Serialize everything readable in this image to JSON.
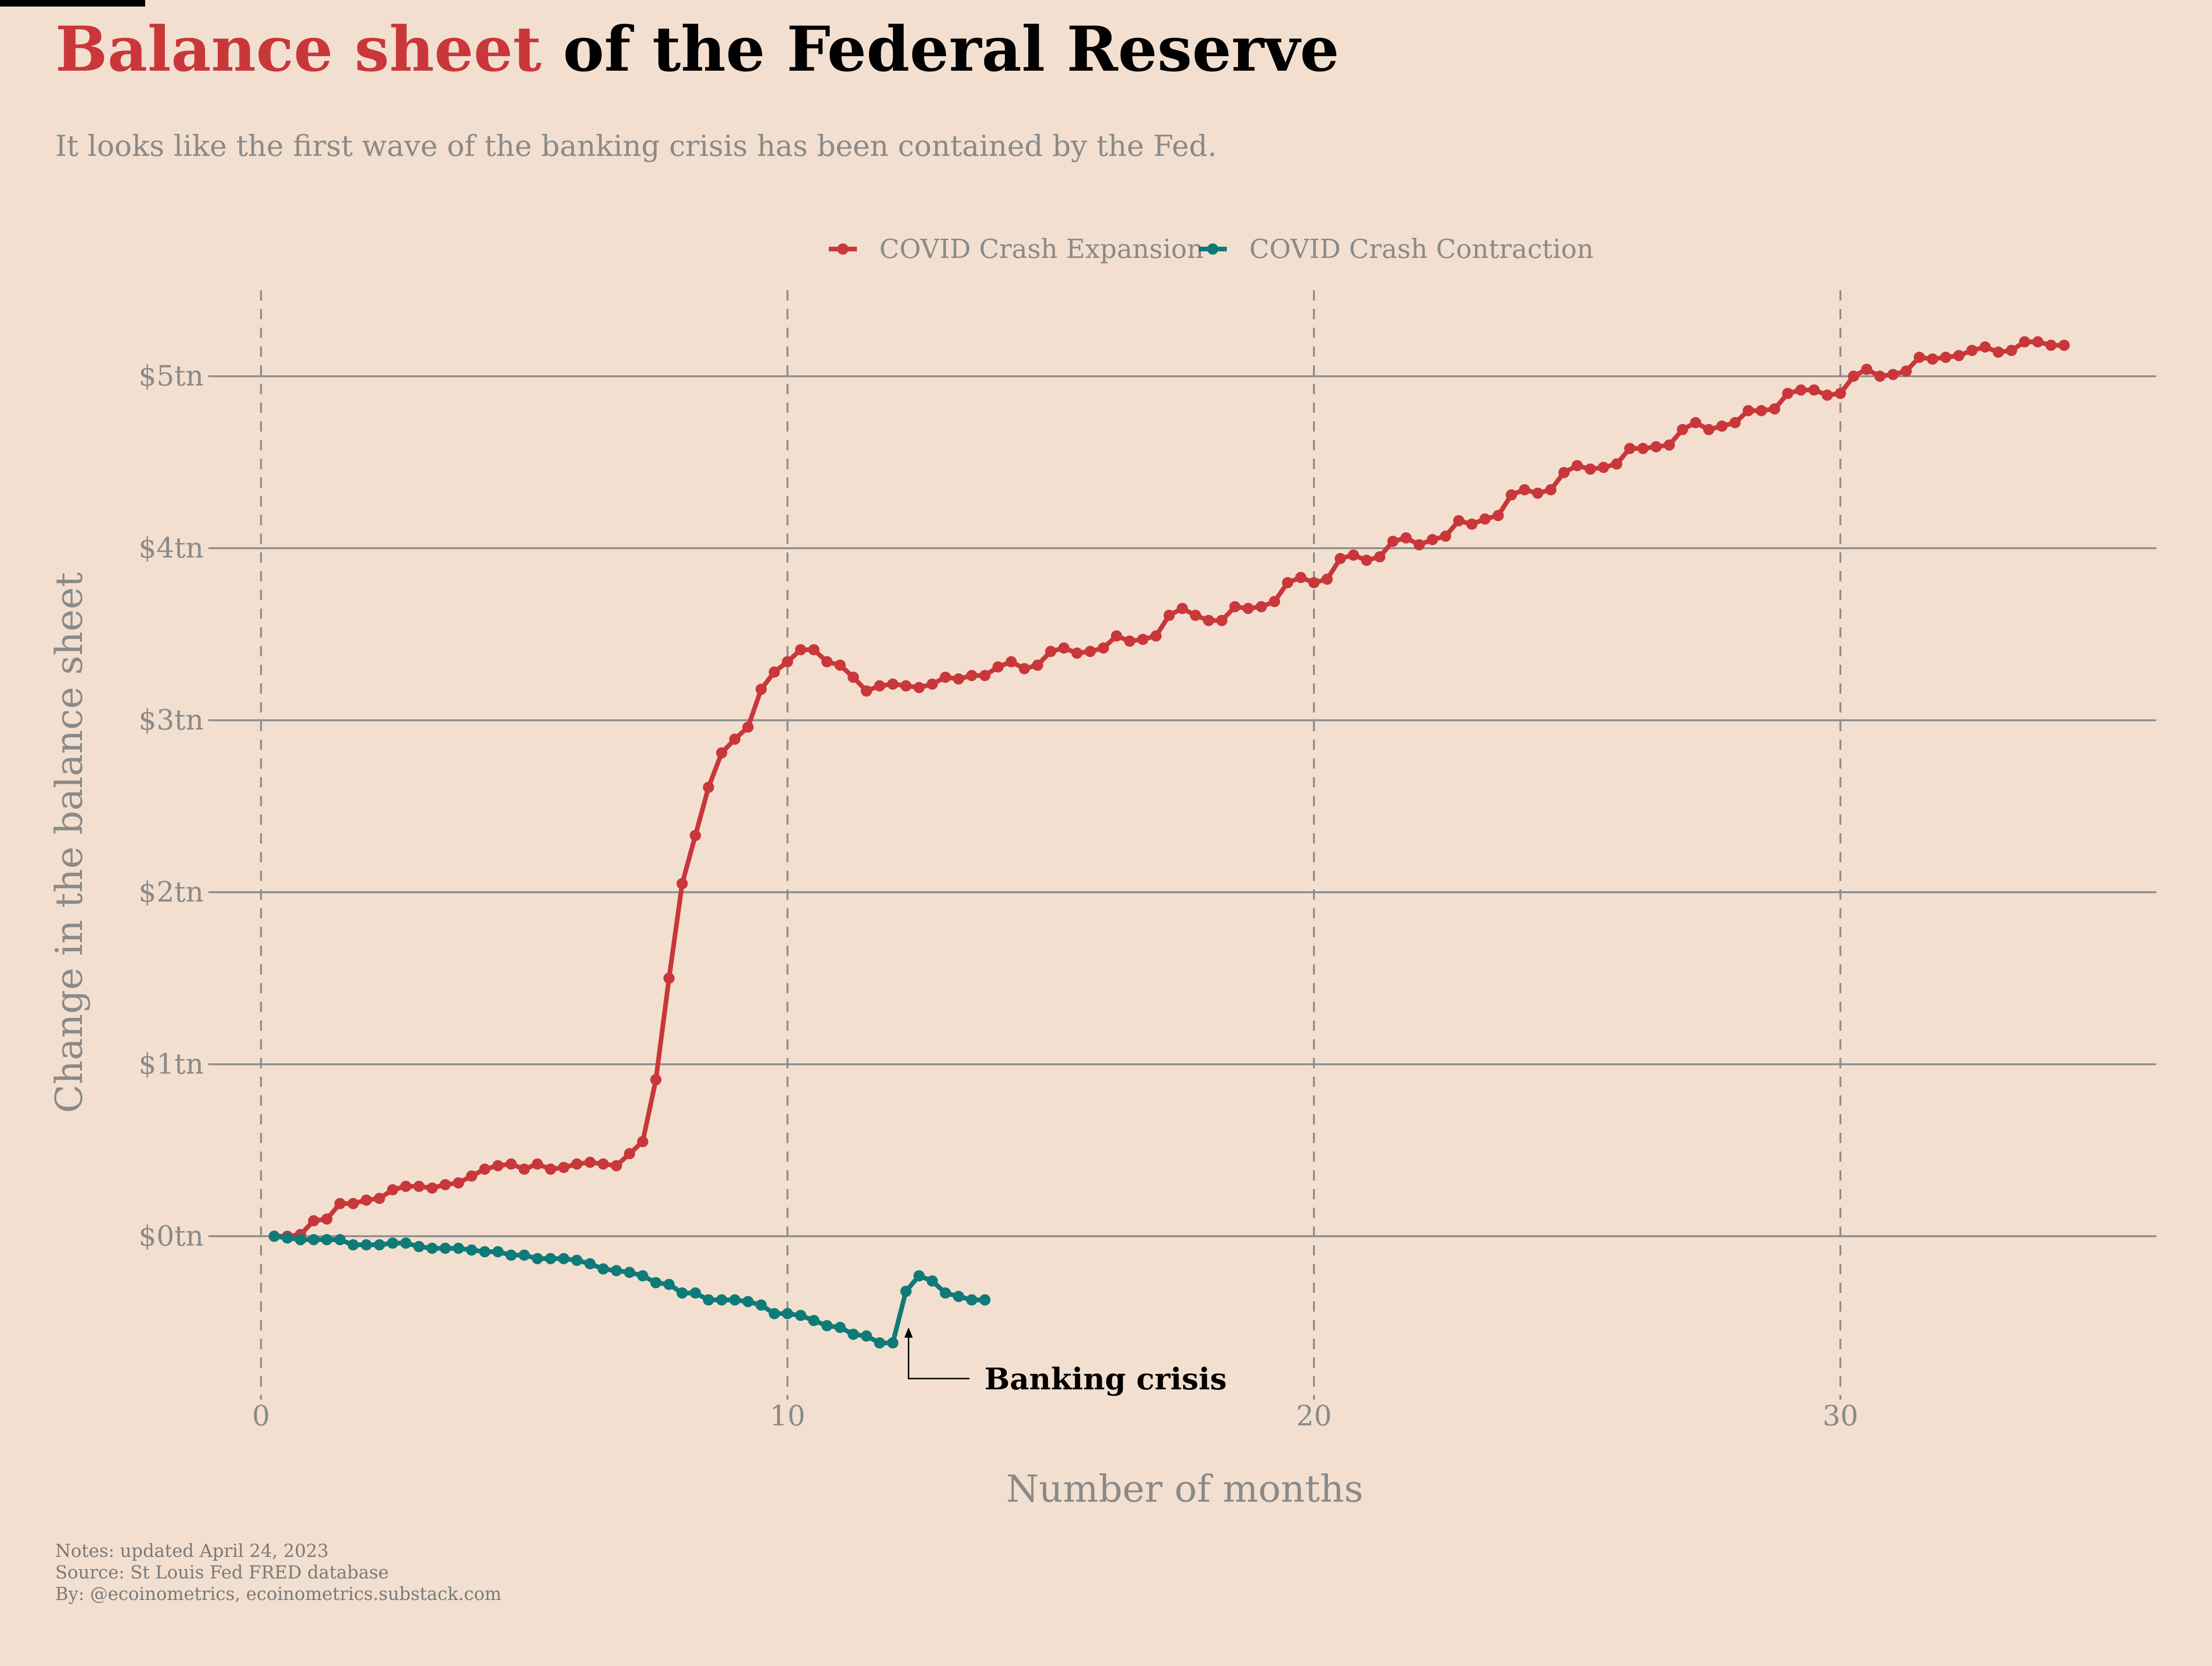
{
  "title": {
    "accent": "Balance sheet",
    "rest": " of the Federal Reserve"
  },
  "subtitle": "It looks like the first wave of the banking crisis has been contained by the Fed.",
  "notes": [
    "Notes: updated April 24, 2023",
    "Source: St Louis Fed FRED database",
    "By: @ecoinometrics, ecoinometrics.substack.com"
  ],
  "colors": {
    "background": "#f2dfcf",
    "expansion": "#c9373a",
    "contraction": "#0e7b78",
    "accent": "#c9373a"
  },
  "chart_data": {
    "type": "line",
    "title": "",
    "xlabel": "Number of months",
    "ylabel": "Change in the balance sheet",
    "xlim": [
      -1,
      36
    ],
    "ylim": [
      -0.95,
      5.5
    ],
    "x_ticks": [
      0,
      10,
      20,
      30
    ],
    "y_ticks": [
      0,
      1,
      2,
      3,
      4,
      5
    ],
    "y_tick_labels": [
      "$0tn",
      "$1tn",
      "$2tn",
      "$3tn",
      "$4tn",
      "$5tn"
    ],
    "grid": "horizontal solid, vertical dashed",
    "legend_position": "top-center",
    "series": [
      {
        "name": "COVID Crash Expansion",
        "color": "#c9373a",
        "x": [
          0.25,
          0.5,
          0.75,
          1.0,
          1.25,
          1.5,
          1.75,
          2.0,
          2.25,
          2.5,
          2.75,
          3.0,
          3.25,
          3.5,
          3.75,
          4.0,
          4.25,
          4.5,
          4.75,
          5.0,
          5.25,
          5.5,
          5.75,
          6.0,
          6.25,
          6.5,
          6.75,
          7.0,
          7.25,
          7.5,
          7.75,
          8.0,
          8.25,
          8.5,
          8.75,
          9.0,
          9.25,
          9.5,
          9.75,
          10.0,
          10.25,
          10.5,
          10.75,
          11.0,
          11.25,
          11.5,
          11.75,
          12.0,
          12.25,
          12.5,
          12.75,
          13.0,
          13.25,
          13.5,
          13.75,
          14.0,
          14.25,
          14.5,
          14.75,
          15.0,
          15.25,
          15.5,
          15.75,
          16.0,
          16.25,
          16.5,
          16.75,
          17.0,
          17.25,
          17.5,
          17.75,
          18.0,
          18.25,
          18.5,
          18.75,
          19.0,
          19.25,
          19.5,
          19.75,
          20.0,
          20.25,
          20.5,
          20.75,
          21.0,
          21.25,
          21.5,
          21.75,
          22.0,
          22.25,
          22.5,
          22.75,
          23.0,
          23.25,
          23.5,
          23.75,
          24.0,
          24.25,
          24.5,
          24.75,
          25.0,
          25.25,
          25.5,
          25.75,
          26.0,
          26.25,
          26.5,
          26.75,
          27.0,
          27.25,
          27.5,
          27.75,
          28.0,
          28.25,
          28.5,
          28.75,
          29.0,
          29.25,
          29.5,
          29.75,
          30.0,
          30.25,
          30.5,
          30.75,
          31.0,
          31.25,
          31.5,
          31.75,
          32.0,
          32.25,
          32.5,
          32.75,
          33.0,
          33.25,
          33.5,
          33.75,
          34.0,
          34.25
        ],
        "y": [
          0.0,
          0.0,
          0.01,
          0.09,
          0.1,
          0.19,
          0.19,
          0.21,
          0.22,
          0.27,
          0.29,
          0.29,
          0.28,
          0.3,
          0.31,
          0.35,
          0.39,
          0.41,
          0.42,
          0.39,
          0.42,
          0.39,
          0.4,
          0.42,
          0.43,
          0.42,
          0.41,
          0.48,
          0.55,
          0.91,
          1.5,
          2.05,
          2.33,
          2.61,
          2.81,
          2.89,
          2.96,
          3.18,
          3.28,
          3.34,
          3.41,
          3.41,
          3.34,
          3.32,
          3.25,
          3.17,
          3.2,
          3.21,
          3.2,
          3.19,
          3.21,
          3.25,
          3.24,
          3.26,
          3.26,
          3.31,
          3.34,
          3.3,
          3.32,
          3.4,
          3.42,
          3.39,
          3.4,
          3.42,
          3.49,
          3.46,
          3.47,
          3.49,
          3.61,
          3.65,
          3.61,
          3.58,
          3.58,
          3.66,
          3.65,
          3.66,
          3.69,
          3.8,
          3.83,
          3.8,
          3.82,
          3.94,
          3.96,
          3.93,
          3.95,
          4.04,
          4.06,
          4.02,
          4.05,
          4.07,
          4.16,
          4.14,
          4.17,
          4.19,
          4.31,
          4.34,
          4.32,
          4.34,
          4.44,
          4.48,
          4.46,
          4.47,
          4.49,
          4.58,
          4.58,
          4.59,
          4.6,
          4.69,
          4.73,
          4.69,
          4.71,
          4.73,
          4.8,
          4.8,
          4.81,
          4.9,
          4.92,
          4.92,
          4.89,
          4.9,
          5.0,
          5.04,
          5.0,
          5.01,
          5.03,
          5.11,
          5.1,
          5.11,
          5.12,
          5.15,
          5.17,
          5.14,
          5.15,
          5.2,
          5.2,
          5.18,
          5.18
        ]
      },
      {
        "name": "COVID Crash Contraction",
        "color": "#0e7b78",
        "x": [
          0.25,
          0.5,
          0.75,
          1.0,
          1.25,
          1.5,
          1.75,
          2.0,
          2.25,
          2.5,
          2.75,
          3.0,
          3.25,
          3.5,
          3.75,
          4.0,
          4.25,
          4.5,
          4.75,
          5.0,
          5.25,
          5.5,
          5.75,
          6.0,
          6.25,
          6.5,
          6.75,
          7.0,
          7.25,
          7.5,
          7.75,
          8.0,
          8.25,
          8.5,
          8.75,
          9.0,
          9.25,
          9.5,
          9.75,
          10.0,
          10.25,
          10.5,
          10.75,
          11.0,
          11.25,
          11.5,
          11.75,
          12.0,
          12.25,
          12.5,
          12.75,
          13.0,
          13.25,
          13.5,
          13.75
        ],
        "y": [
          0.0,
          -0.01,
          -0.02,
          -0.02,
          -0.02,
          -0.02,
          -0.05,
          -0.05,
          -0.05,
          -0.04,
          -0.04,
          -0.06,
          -0.07,
          -0.07,
          -0.07,
          -0.08,
          -0.09,
          -0.09,
          -0.11,
          -0.11,
          -0.13,
          -0.13,
          -0.13,
          -0.14,
          -0.16,
          -0.19,
          -0.2,
          -0.21,
          -0.23,
          -0.27,
          -0.28,
          -0.33,
          -0.33,
          -0.37,
          -0.37,
          -0.37,
          -0.38,
          -0.4,
          -0.45,
          -0.45,
          -0.46,
          -0.49,
          -0.52,
          -0.53,
          -0.57,
          -0.58,
          -0.62,
          -0.62,
          -0.32,
          -0.23,
          -0.26,
          -0.33,
          -0.35,
          -0.37,
          -0.37
        ]
      }
    ],
    "annotations": [
      {
        "text": "Banking crisis",
        "x": 12.3,
        "y": -0.53
      }
    ]
  }
}
